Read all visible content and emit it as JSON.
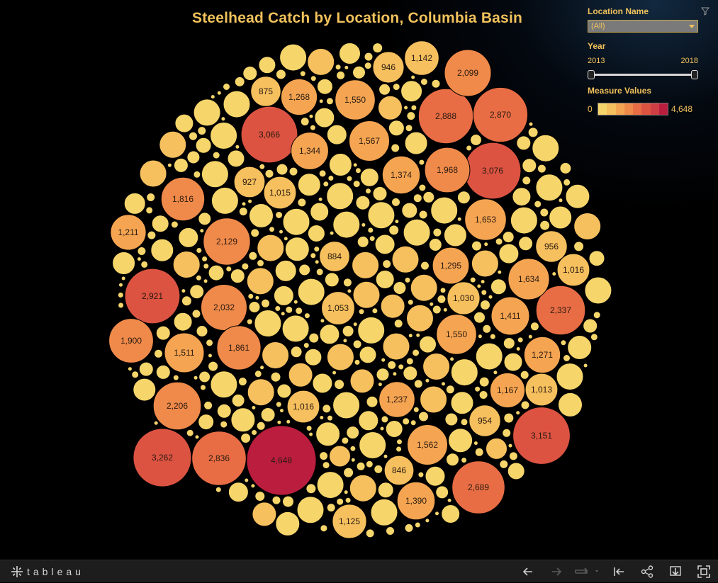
{
  "title": "Steelhead Catch by Location, Columbia Basin",
  "filters": {
    "location_label": "Location Name",
    "location_value": "(All)",
    "year_label": "Year",
    "year_min": "2013",
    "year_max": "2018"
  },
  "legend": {
    "label": "Measure Values",
    "min": "0",
    "max": "4,648",
    "colors": [
      "#f6d66b",
      "#f6c05e",
      "#f5a552",
      "#f08a4a",
      "#e86d45",
      "#dc5342",
      "#cf3d44",
      "#bb1d3f"
    ]
  },
  "toolbar": {
    "brand": "tableau"
  },
  "chart_data": {
    "type": "packed-bubble",
    "title": "Steelhead Catch by Location, Columbia Basin",
    "color_scale": {
      "min": 0,
      "max": 4648
    },
    "labeled_values": [
      4648,
      3262,
      3151,
      3076,
      3066,
      2921,
      2888,
      2870,
      2836,
      2689,
      2337,
      2206,
      2129,
      2099,
      2032,
      1968,
      1900,
      1861,
      1816,
      1653,
      1634,
      1567,
      1562,
      1550,
      1550,
      1511,
      1411,
      1390,
      1374,
      1344,
      1295,
      1271,
      1268,
      1237,
      1211,
      1167,
      1142,
      1125,
      1053,
      1030,
      1016,
      1016,
      1015,
      1013,
      956,
      954,
      946,
      927,
      884,
      875,
      846
    ]
  }
}
